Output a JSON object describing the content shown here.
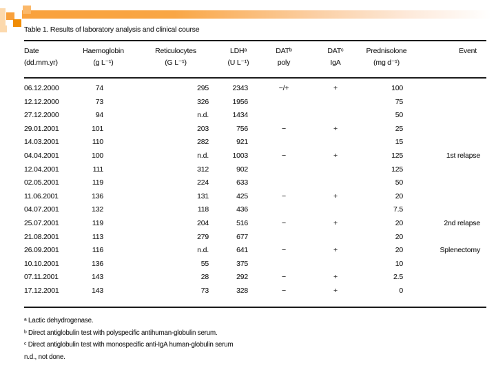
{
  "decoration": {
    "accent_orange": "#f9a13c",
    "accent_deep_orange": "#f08c05",
    "accent_light_orange": "#fbb869",
    "accent_pale_orange": "#fcd9ad"
  },
  "table": {
    "title": "Table 1. Results of laboratory analysis and clinical course",
    "columns": [
      {
        "l1": "Date",
        "l2": "(dd.mm.yr)"
      },
      {
        "l1": "Haemoglobin",
        "l2": "(g L⁻¹)"
      },
      {
        "l1": "Reticulocytes",
        "l2": "(G L⁻¹)"
      },
      {
        "l1": "LDHᵃ",
        "l2": "(U L⁻¹)"
      },
      {
        "l1": "DATᵇ",
        "l2": "poly"
      },
      {
        "l1": "DATᶜ",
        "l2": "IgA"
      },
      {
        "l1": "Prednisolone",
        "l2": "(mg d⁻¹)"
      },
      {
        "l1": "",
        "l2": "Event"
      }
    ],
    "rows": [
      {
        "date": "06.12.2000",
        "hb": "74",
        "retic": "295",
        "ldh": "2343",
        "poly": "−/+",
        "iga": "+",
        "pred": "100",
        "event": ""
      },
      {
        "date": "12.12.2000",
        "hb": "73",
        "retic": "326",
        "ldh": "1956",
        "poly": "",
        "iga": "",
        "pred": "75",
        "event": ""
      },
      {
        "date": "27.12.2000",
        "hb": "94",
        "retic": "n.d.",
        "ldh": "1434",
        "poly": "",
        "iga": "",
        "pred": "50",
        "event": ""
      },
      {
        "date": "29.01.2001",
        "hb": "101",
        "retic": "203",
        "ldh": "756",
        "poly": "−",
        "iga": "+",
        "pred": "25",
        "event": ""
      },
      {
        "date": "14.03.2001",
        "hb": "110",
        "retic": "282",
        "ldh": "921",
        "poly": "",
        "iga": "",
        "pred": "15",
        "event": ""
      },
      {
        "date": "04.04.2001",
        "hb": "100",
        "retic": "n.d.",
        "ldh": "1003",
        "poly": "−",
        "iga": "+",
        "pred": "125",
        "event": "1st relapse"
      },
      {
        "date": "12.04.2001",
        "hb": "111",
        "retic": "312",
        "ldh": "902",
        "poly": "",
        "iga": "",
        "pred": "125",
        "event": ""
      },
      {
        "date": "02.05.2001",
        "hb": "119",
        "retic": "224",
        "ldh": "633",
        "poly": "",
        "iga": "",
        "pred": "50",
        "event": ""
      },
      {
        "date": "11.06.2001",
        "hb": "136",
        "retic": "131",
        "ldh": "425",
        "poly": "−",
        "iga": "+",
        "pred": "20",
        "event": ""
      },
      {
        "date": "04.07.2001",
        "hb": "132",
        "retic": "118",
        "ldh": "436",
        "poly": "",
        "iga": "",
        "pred": "7.5",
        "event": ""
      },
      {
        "date": "25.07.2001",
        "hb": "119",
        "retic": "204",
        "ldh": "516",
        "poly": "−",
        "iga": "+",
        "pred": "20",
        "event": "2nd relapse"
      },
      {
        "date": "21.08.2001",
        "hb": "113",
        "retic": "279",
        "ldh": "677",
        "poly": "",
        "iga": "",
        "pred": "20",
        "event": ""
      },
      {
        "date": "26.09.2001",
        "hb": "116",
        "retic": "n.d.",
        "ldh": "641",
        "poly": "−",
        "iga": "+",
        "pred": "20",
        "event": "Splenectomy"
      },
      {
        "date": "10.10.2001",
        "hb": "136",
        "retic": "55",
        "ldh": "375",
        "poly": "",
        "iga": "",
        "pred": "10",
        "event": ""
      },
      {
        "date": "07.11.2001",
        "hb": "143",
        "retic": "28",
        "ldh": "292",
        "poly": "−",
        "iga": "+",
        "pred": "2.5",
        "event": ""
      },
      {
        "date": "17.12.2001",
        "hb": "143",
        "retic": "73",
        "ldh": "328",
        "poly": "−",
        "iga": "+",
        "pred": "0",
        "event": ""
      }
    ],
    "footnotes": [
      "ᵃ Lactic dehydrogenase.",
      "ᵇ Direct antiglobulin test with polyspecific antihuman-globulin serum.",
      "ᶜ Direct antiglobulin test with monospecific anti-IgA human-globulin serum",
      "n.d., not done."
    ]
  }
}
